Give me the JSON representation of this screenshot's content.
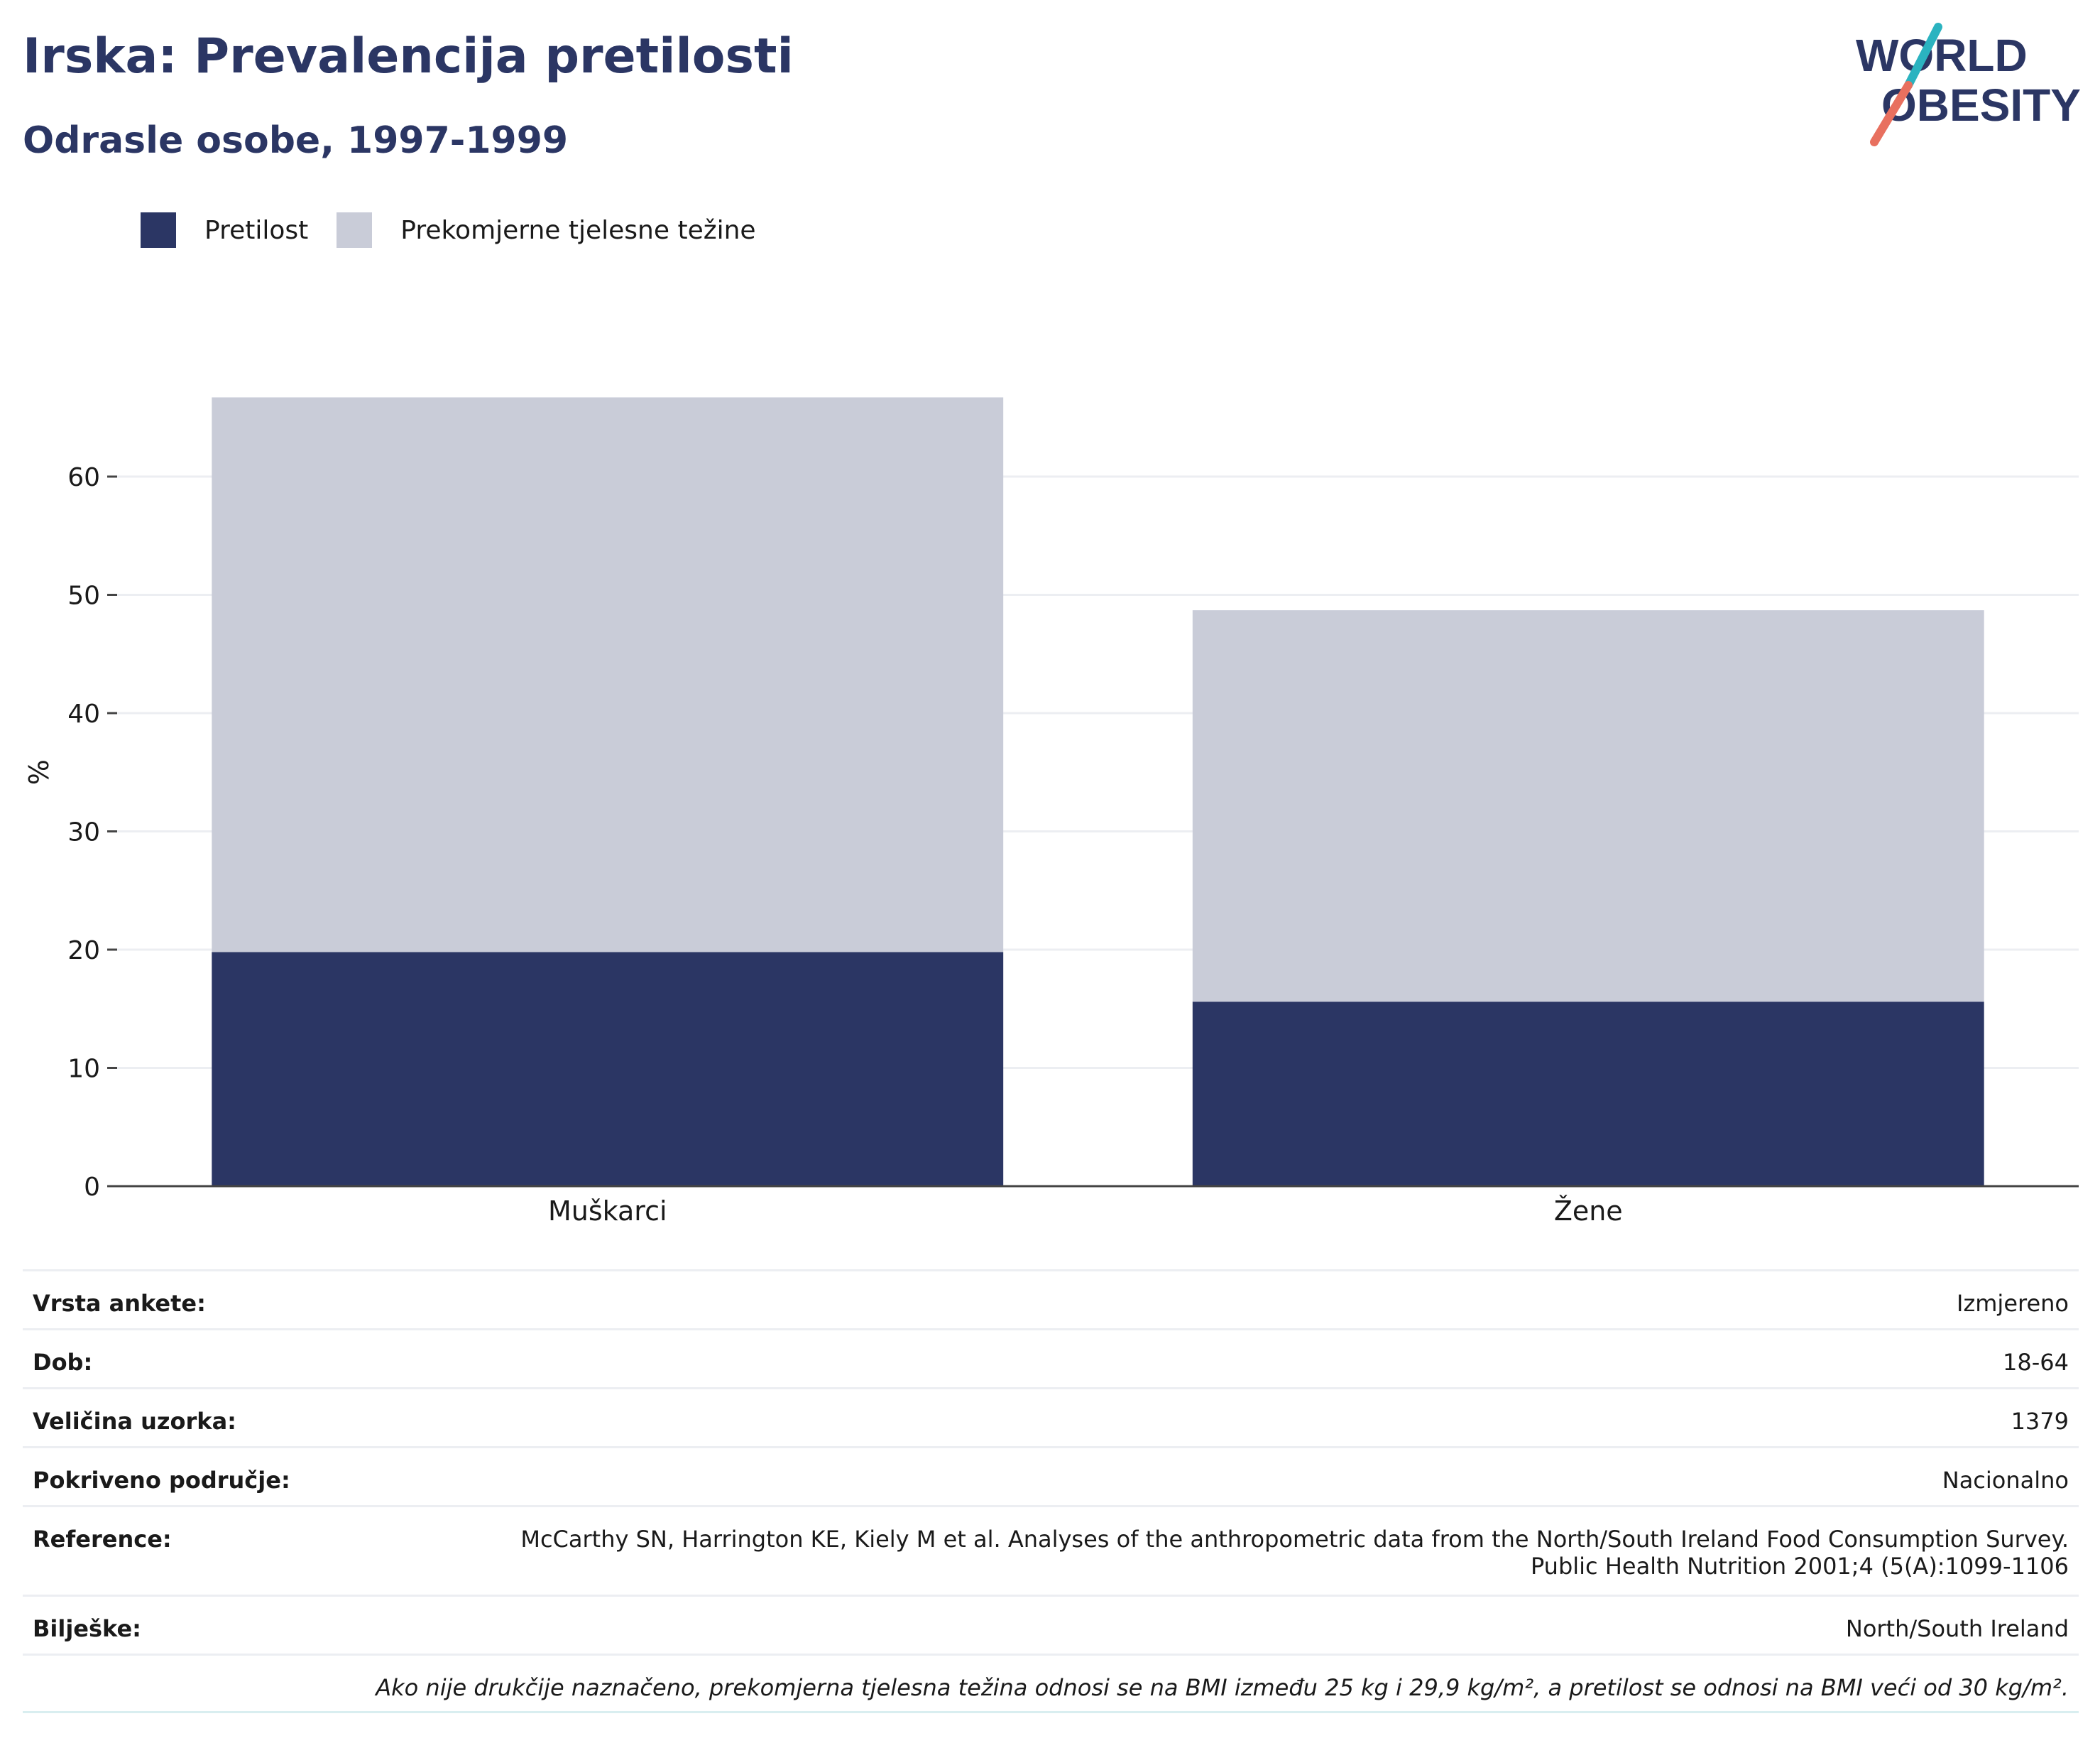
{
  "header": {
    "title": "Irska: Prevalencija pretilosti",
    "subtitle": "Odrasle osobe, 1997-1999"
  },
  "logo": {
    "line1": "WORLD",
    "line2": "OBESITY",
    "colors": {
      "text": "#2b3664",
      "slash_top": "#2bb3c0",
      "slash_bottom": "#e8705f"
    }
  },
  "legend": [
    {
      "label": "Pretilost",
      "color": "#2b3664"
    },
    {
      "label": "Prekomjerne tjelesne težine",
      "color": "#c9ccd8"
    }
  ],
  "chart_data": {
    "type": "bar",
    "stacked": true,
    "categories": [
      "Muškarci",
      "Žene"
    ],
    "series": [
      {
        "name": "Pretilost",
        "values": [
          19.8,
          15.6
        ],
        "color": "#2b3664"
      },
      {
        "name": "Prekomjerne tjelesne težine",
        "values": [
          46.9,
          33.1
        ],
        "color": "#c9ccd8"
      }
    ],
    "ylabel": "%",
    "xlabel": "",
    "ylim": [
      0,
      70
    ],
    "yticks": [
      0,
      10,
      20,
      30,
      40,
      50,
      60
    ],
    "grid": true
  },
  "table": {
    "rows": [
      {
        "key": "Vrsta ankete:",
        "value": "Izmjereno"
      },
      {
        "key": "Dob:",
        "value": "18-64"
      },
      {
        "key": "Veličina uzorka:",
        "value": "1379"
      },
      {
        "key": "Pokriveno područje:",
        "value": "Nacionalno"
      },
      {
        "key": "Reference:",
        "value_line1": "McCarthy SN, Harrington KE, Kiely M et al. Analyses of the anthropometric data from the North/South Ireland Food Consumption Survey.",
        "value_line2": "Public Health Nutrition 2001;4 (5(A):1099-1106"
      },
      {
        "key": "Bilješke:",
        "value": "North/South Ireland"
      }
    ],
    "footnote": "Ako nije drukčije naznačeno, prekomjerna tjelesna težina odnosi se na BMI između 25 kg i 29,9 kg/m², a pretilost se odnosi na BMI veći od 30 kg/m²."
  }
}
